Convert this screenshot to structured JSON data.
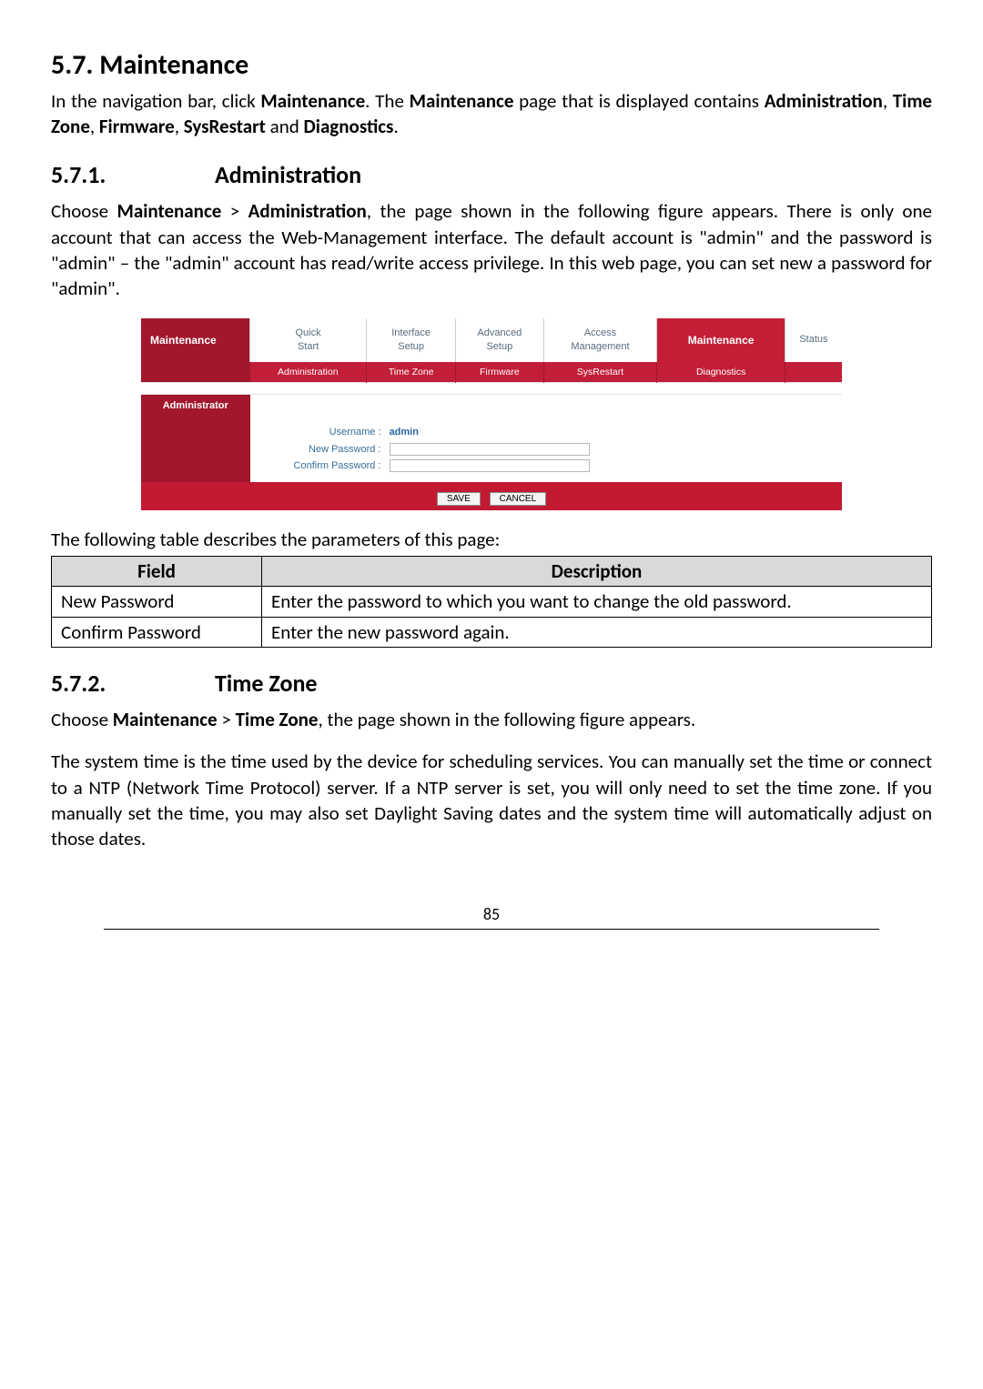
{
  "heading": {
    "num": "5.7.",
    "title": "Maintenance"
  },
  "intro": {
    "pre1": "In the navigation bar, click ",
    "b1": "Maintenance",
    "mid1": ". The ",
    "b2": "Maintenance",
    "mid2": " page that is displayed contains ",
    "b3": "Administration",
    "mid3": ", ",
    "b4": "Time Zone",
    "mid4": ", ",
    "b5": "Firmware",
    "mid5": ", ",
    "b6": "SysRestart",
    "mid6": " and ",
    "b7": "Diagnostics",
    "end": "."
  },
  "sub1": {
    "num": "5.7.1.",
    "title": "Administration"
  },
  "sub1_para": {
    "pre": "Choose ",
    "b1": "Maintenance",
    "gt": " > ",
    "b2": "Administration",
    "rest": ", the page shown in the following figure appears. There is only one account that can access the Web-Management interface. The default account is \"admin\" and the password is \"admin\" – the \"admin\" account has read/write access privilege. In this web page, you can set new a password for \"admin\"."
  },
  "screenshot": {
    "sidebar": "Maintenance",
    "tabs": {
      "quick": "Quick\nStart",
      "iface": "Interface\nSetup",
      "adv": "Advanced\nSetup",
      "access": "Access\nManagement",
      "maint": "Maintenance",
      "status": "Status"
    },
    "subtabs": {
      "t1": "Administration",
      "t2": "Time Zone",
      "t3": "Firmware",
      "t4": "SysRestart",
      "t5": "Diagnostics"
    },
    "panel_label": "Administrator",
    "form": {
      "user_label": "Username :",
      "user_value": "admin",
      "new_label": "New Password :",
      "confirm_label": "Confirm Password :"
    },
    "buttons": {
      "save": "SAVE",
      "cancel": "CANCEL"
    }
  },
  "table_intro": "The following table describes the parameters of this page:",
  "ptable": {
    "h_field": "Field",
    "h_desc": "Description",
    "r1_f": "New Password",
    "r1_d": "Enter the password to which you want to change the old password.",
    "r2_f": "Confirm Password",
    "r2_d": "Enter the new password again."
  },
  "sub2": {
    "num": "5.7.2.",
    "title": "Time Zone"
  },
  "sub2_para1": {
    "pre": "Choose ",
    "b1": "Maintenance",
    "gt": " > ",
    "b2": "Time Zone",
    "rest": ", the page shown in the following figure appears."
  },
  "sub2_para2": "The system time is the time used by the device for scheduling services. You can manually set the time or connect to a NTP (Network Time Protocol) server. If a NTP server is set, you will only need to set the time zone. If you manually set the time, you may also set Daylight Saving dates and the system time will automatically adjust on those dates.",
  "pagenum": "85"
}
